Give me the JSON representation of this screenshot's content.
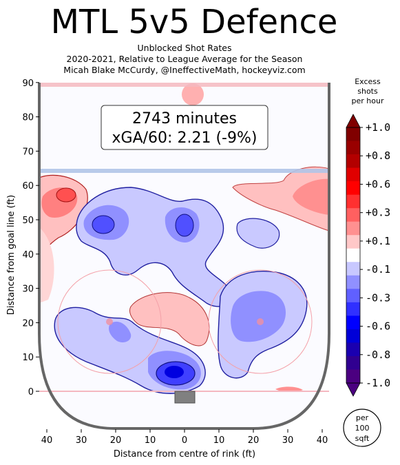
{
  "title": "MTL 5v5 Defence",
  "subtitle_lines": [
    "Unblocked Shot Rates",
    "2020-2021, Relative to League Average for the Season",
    "Micah Blake McCurdy, @IneffectiveMath, hockeyviz.com"
  ],
  "info": {
    "line1": "2743 minutes",
    "line2": "xGA/60: 2.21 (-9%)"
  },
  "unit_note": [
    "per",
    "100",
    "sqft"
  ],
  "colors": {
    "blue_dark": "#2020e0",
    "blue_mid": "#7f7ff5",
    "blue_light": "#c9c9ff",
    "red_light": "#ffc0c0",
    "red_mid": "#ff8080",
    "rink_board": "#666666",
    "blue_line": "#b0c4e8",
    "red_line": "#f4b8c0"
  },
  "chart_data": {
    "type": "heatmap",
    "title": "MTL 5v5 Defence",
    "xlabel": "Distance from centre of rink (ft)",
    "ylabel": "Distance from goal line (ft)",
    "x_ticks": [
      "40",
      "30",
      "20",
      "10",
      "0",
      "10",
      "20",
      "30",
      "40"
    ],
    "x_tick_values": [
      -40,
      -30,
      -20,
      -10,
      0,
      10,
      20,
      30,
      40
    ],
    "y_ticks": [
      "0",
      "10",
      "20",
      "30",
      "40",
      "50",
      "60",
      "70",
      "80",
      "90"
    ],
    "y_tick_values": [
      0,
      10,
      20,
      30,
      40,
      50,
      60,
      70,
      80,
      90
    ],
    "xlim": [
      -42.5,
      42.5
    ],
    "ylim": [
      -11,
      90
    ],
    "colorbar": {
      "title": [
        "Excess",
        "shots",
        "per hour"
      ],
      "ticks": [
        "+1.0",
        "+0.8",
        "+0.6",
        "+0.3",
        "+0.1",
        "-0.1",
        "-0.3",
        "-0.6",
        "-0.8",
        "-1.0"
      ],
      "levels": [
        {
          "value": 1.0,
          "color": "#800000"
        },
        {
          "value": 0.9,
          "color": "#990000"
        },
        {
          "value": 0.8,
          "color": "#b30000"
        },
        {
          "value": 0.7,
          "color": "#e00000"
        },
        {
          "value": 0.6,
          "color": "#ff0000"
        },
        {
          "value": 0.45,
          "color": "#ff3030"
        },
        {
          "value": 0.3,
          "color": "#ff6060"
        },
        {
          "value": 0.2,
          "color": "#ff9090"
        },
        {
          "value": 0.1,
          "color": "#ffc8c8"
        },
        {
          "value": 0.0,
          "color": "#ffffff"
        },
        {
          "value": -0.1,
          "color": "#c8c8ff"
        },
        {
          "value": -0.2,
          "color": "#9090ff"
        },
        {
          "value": -0.3,
          "color": "#6060ff"
        },
        {
          "value": -0.45,
          "color": "#3030ff"
        },
        {
          "value": -0.6,
          "color": "#0000ff"
        },
        {
          "value": -0.7,
          "color": "#0000d8"
        },
        {
          "value": -0.8,
          "color": "#1a00b0"
        },
        {
          "value": -0.9,
          "color": "#300090"
        },
        {
          "value": -1.0,
          "color": "#4b0080"
        }
      ]
    },
    "regions": [
      {
        "x": -3,
        "y": 5,
        "value": -0.9
      },
      {
        "x": -22,
        "y": 49,
        "value": -0.35
      },
      {
        "x": -1,
        "y": 49,
        "value": -0.35
      },
      {
        "x": 20,
        "y": 22,
        "value": -0.25
      },
      {
        "x": -14,
        "y": 40,
        "value": -0.15
      },
      {
        "x": -22,
        "y": 20,
        "value": -0.12
      },
      {
        "x": -35,
        "y": 57,
        "value": 0.4
      },
      {
        "x": 35,
        "y": 55,
        "value": 0.25
      },
      {
        "x": 10,
        "y": 24,
        "value": 0.15
      },
      {
        "x": 2,
        "y": 86,
        "value": 0.15
      }
    ]
  }
}
